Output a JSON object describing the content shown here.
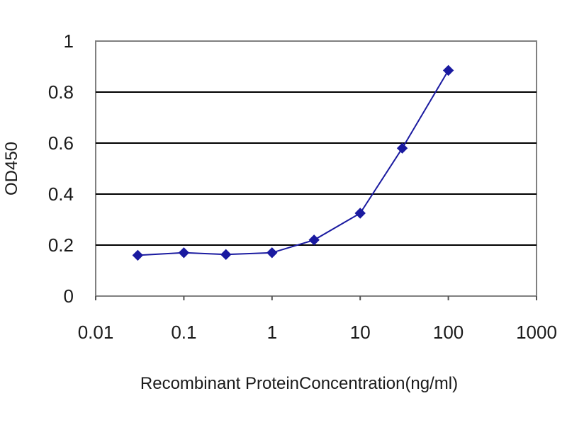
{
  "chart_data": {
    "type": "line",
    "title": "",
    "xlabel": "Recombinant ProteinConcentration(ng/ml)",
    "ylabel": "OD450",
    "xscale": "log",
    "xlim": [
      0.01,
      1000
    ],
    "ylim": [
      0,
      1
    ],
    "x_ticks": [
      "0.01",
      "0.1",
      "1",
      "10",
      "100",
      "1000"
    ],
    "y_ticks": [
      "0",
      "0.2",
      "0.4",
      "0.6",
      "0.8",
      "1"
    ],
    "grid": "horizontal",
    "legend": "none",
    "series": [
      {
        "x": [
          0.03,
          0.1,
          0.3,
          1,
          3,
          10,
          30,
          100
        ],
        "y": [
          0.16,
          0.17,
          0.163,
          0.17,
          0.22,
          0.325,
          0.58,
          0.885
        ],
        "color": "#1a1aa0",
        "marker": "diamond"
      }
    ],
    "colors": {
      "line": "#1a1aa0",
      "grid": "#000000",
      "frame": "#808080"
    }
  }
}
